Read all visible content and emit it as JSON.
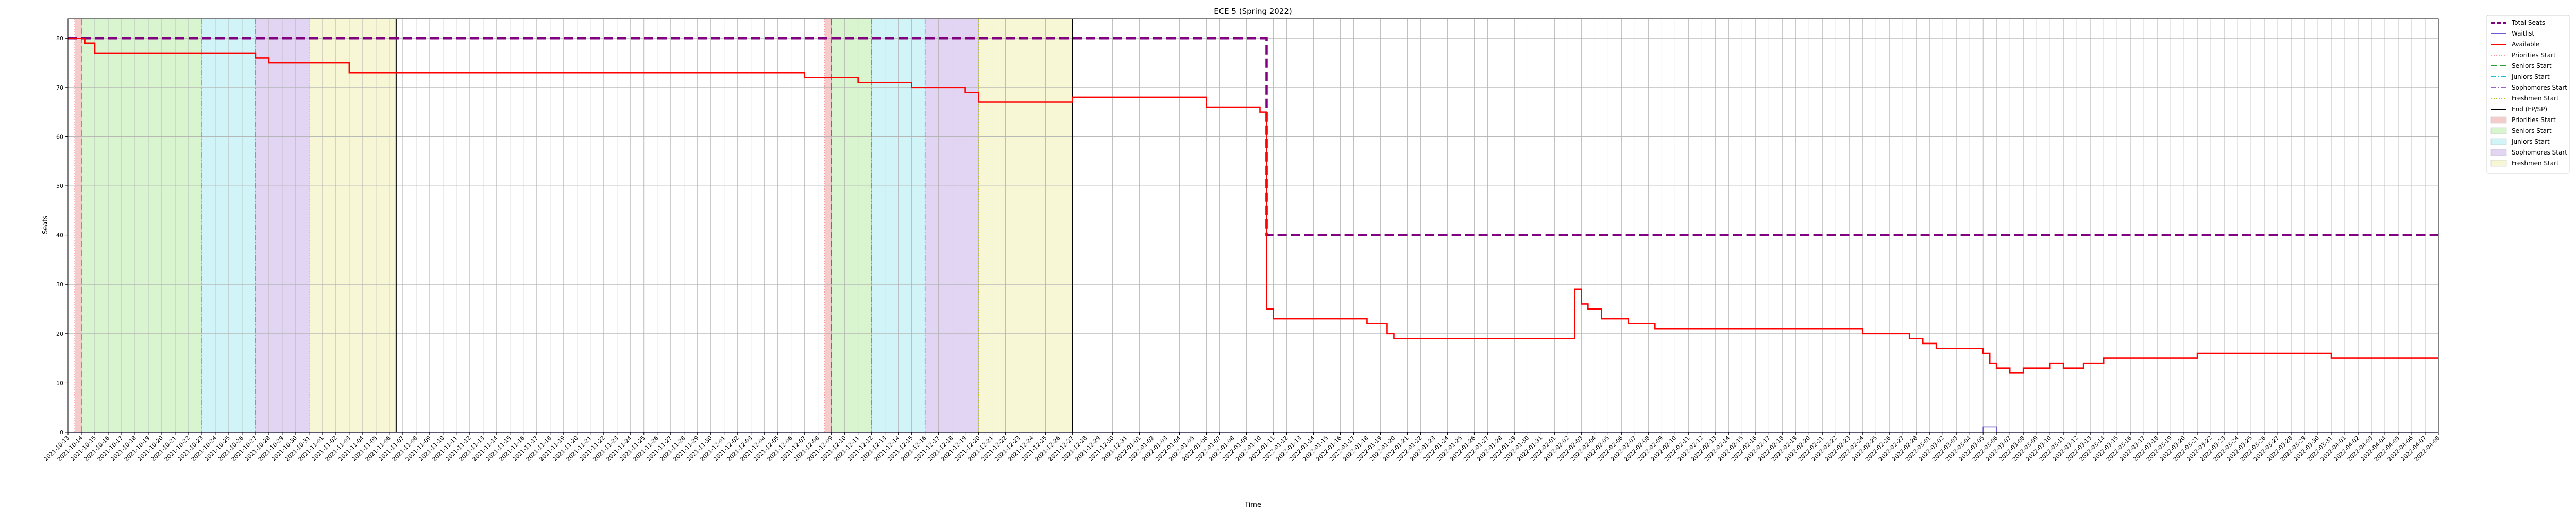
{
  "chart_data": {
    "type": "line",
    "title": "ECE 5 (Spring 2022)",
    "xlabel": "Time",
    "ylabel": "Seats",
    "ylim": [
      0,
      84
    ],
    "yticks": [
      0,
      10,
      20,
      30,
      40,
      50,
      60,
      70,
      80
    ],
    "x_axis": "datetime",
    "xlim": [
      "2021-10-13 00:00",
      "2022-04-08 00:00"
    ],
    "grid": true,
    "legend_position": "outside-right",
    "series": [
      {
        "name": "Total Seats",
        "color": "#800080",
        "style": "dashed",
        "step": true,
        "points": [
          [
            "2021-10-13 00:00",
            80
          ],
          [
            "2022-01-10 12:00",
            80
          ],
          [
            "2022-01-10 12:00",
            40
          ],
          [
            "2022-04-08 00:00",
            40
          ]
        ]
      },
      {
        "name": "Waitlist",
        "color": "#6a5acd",
        "style": "solid",
        "step": true,
        "points": [
          [
            "2021-10-13 00:00",
            0
          ],
          [
            "2022-03-05 00:00",
            0
          ],
          [
            "2022-03-05 00:00",
            1
          ],
          [
            "2022-03-06 00:00",
            1
          ],
          [
            "2022-03-06 00:00",
            0
          ],
          [
            "2022-04-08 00:00",
            0
          ]
        ]
      },
      {
        "name": "Available",
        "color": "#ff0000",
        "style": "solid",
        "step": true,
        "points": [
          [
            "2021-10-13 00:00",
            80
          ],
          [
            "2021-10-14 06:00",
            79
          ],
          [
            "2021-10-15 00:00",
            77
          ],
          [
            "2021-10-27 00:00",
            76
          ],
          [
            "2021-10-28 00:00",
            75
          ],
          [
            "2021-11-03 00:00",
            73
          ],
          [
            "2021-11-30 00:00",
            73
          ],
          [
            "2021-12-07 00:00",
            72
          ],
          [
            "2021-12-11 00:00",
            71
          ],
          [
            "2021-12-15 00:00",
            70
          ],
          [
            "2021-12-19 00:00",
            69
          ],
          [
            "2021-12-20 00:00",
            67
          ],
          [
            "2021-12-27 00:00",
            68
          ],
          [
            "2022-01-06 00:00",
            66
          ],
          [
            "2022-01-10 00:00",
            65
          ],
          [
            "2022-01-10 12:00",
            25
          ],
          [
            "2022-01-11 00:00",
            23
          ],
          [
            "2022-01-18 00:00",
            22
          ],
          [
            "2022-01-19 12:00",
            20
          ],
          [
            "2022-01-20 00:00",
            19
          ],
          [
            "2022-02-02 12:00",
            29
          ],
          [
            "2022-02-03 00:00",
            26
          ],
          [
            "2022-02-03 12:00",
            25
          ],
          [
            "2022-02-04 12:00",
            23
          ],
          [
            "2022-02-06 12:00",
            22
          ],
          [
            "2022-02-08 12:00",
            21
          ],
          [
            "2022-02-24 00:00",
            20
          ],
          [
            "2022-02-27 12:00",
            19
          ],
          [
            "2022-02-28 12:00",
            18
          ],
          [
            "2022-03-01 12:00",
            17
          ],
          [
            "2022-03-05 00:00",
            16
          ],
          [
            "2022-03-05 12:00",
            14
          ],
          [
            "2022-03-06 00:00",
            13
          ],
          [
            "2022-03-07 00:00",
            12
          ],
          [
            "2022-03-08 00:00",
            13
          ],
          [
            "2022-03-10 00:00",
            14
          ],
          [
            "2022-03-11 00:00",
            13
          ],
          [
            "2022-03-12 12:00",
            14
          ],
          [
            "2022-03-14 00:00",
            15
          ],
          [
            "2022-03-21 00:00",
            16
          ],
          [
            "2022-03-31 00:00",
            15
          ],
          [
            "2022-04-08 00:00",
            15
          ]
        ]
      }
    ],
    "vertical_lines": [
      {
        "name": "Priorities Start",
        "color": "#ff9999",
        "style": "dotted",
        "x": [
          "2021-10-13 12:00",
          "2021-12-08 12:00"
        ]
      },
      {
        "name": "Seniors Start",
        "color": "#2ca02c",
        "style": "dashed",
        "x": [
          "2021-10-14 00:00",
          "2021-12-09 00:00"
        ]
      },
      {
        "name": "Juniors Start",
        "color": "#17becf",
        "style": "dashdot",
        "x": [
          "2021-10-23 00:00",
          "2021-12-12 00:00"
        ]
      },
      {
        "name": "Sophomores Start",
        "color": "#9467bd",
        "style": "dashdot",
        "x": [
          "2021-10-27 00:00",
          "2021-12-16 00:00"
        ]
      },
      {
        "name": "Freshmen Start",
        "color": "#bcbd22",
        "style": "dotted",
        "x": [
          "2021-10-31 00:00",
          "2021-12-20 00:00"
        ]
      },
      {
        "name": "End (FP/SP)",
        "color": "#000000",
        "style": "solid",
        "x": [
          "2021-11-06 12:00",
          "2021-12-27 00:00"
        ]
      }
    ],
    "spans": [
      {
        "name": "Priorities Start",
        "color": "#f4cccc",
        "ranges": [
          [
            "2021-10-13 12:00",
            "2021-10-14 00:00"
          ],
          [
            "2021-12-08 12:00",
            "2021-12-09 00:00"
          ]
        ]
      },
      {
        "name": "Seniors Start",
        "color": "#d9f5d0",
        "ranges": [
          [
            "2021-10-14 00:00",
            "2021-10-23 00:00"
          ],
          [
            "2021-12-09 00:00",
            "2021-12-12 00:00"
          ]
        ]
      },
      {
        "name": "Juniors Start",
        "color": "#d0f4f7",
        "ranges": [
          [
            "2021-10-23 00:00",
            "2021-10-27 00:00"
          ],
          [
            "2021-12-12 00:00",
            "2021-12-16 00:00"
          ]
        ]
      },
      {
        "name": "Sophomores Start",
        "color": "#e2d5f3",
        "ranges": [
          [
            "2021-10-27 00:00",
            "2021-10-31 00:00"
          ],
          [
            "2021-12-16 00:00",
            "2021-12-20 00:00"
          ]
        ]
      },
      {
        "name": "Freshmen Start",
        "color": "#f7f7d6",
        "ranges": [
          [
            "2021-10-31 00:00",
            "2021-11-06 12:00"
          ],
          [
            "2021-12-20 00:00",
            "2021-12-27 00:00"
          ]
        ]
      }
    ],
    "legend": [
      {
        "label": "Total Seats",
        "kind": "line",
        "color": "#800080",
        "style": "dashed"
      },
      {
        "label": "Waitlist",
        "kind": "line",
        "color": "#6a5acd",
        "style": "solid"
      },
      {
        "label": "Available",
        "kind": "line",
        "color": "#ff0000",
        "style": "solid"
      },
      {
        "label": "Priorities Start",
        "kind": "line",
        "color": "#ff9999",
        "style": "dotted"
      },
      {
        "label": "Seniors Start",
        "kind": "line",
        "color": "#2ca02c",
        "style": "dashed"
      },
      {
        "label": "Juniors Start",
        "kind": "line",
        "color": "#17becf",
        "style": "dashdot"
      },
      {
        "label": "Sophomores Start",
        "kind": "line",
        "color": "#9467bd",
        "style": "dashdot"
      },
      {
        "label": "Freshmen Start",
        "kind": "line",
        "color": "#bcbd22",
        "style": "dotted"
      },
      {
        "label": "End (FP/SP)",
        "kind": "line",
        "color": "#000000",
        "style": "solid"
      },
      {
        "label": "Priorities Start",
        "kind": "patch",
        "color": "#f4cccc"
      },
      {
        "label": "Seniors Start",
        "kind": "patch",
        "color": "#d9f5d0"
      },
      {
        "label": "Juniors Start",
        "kind": "patch",
        "color": "#d0f4f7"
      },
      {
        "label": "Sophomores Start",
        "kind": "patch",
        "color": "#e2d5f3"
      },
      {
        "label": "Freshmen Start",
        "kind": "patch",
        "color": "#f7f7d6"
      }
    ]
  }
}
